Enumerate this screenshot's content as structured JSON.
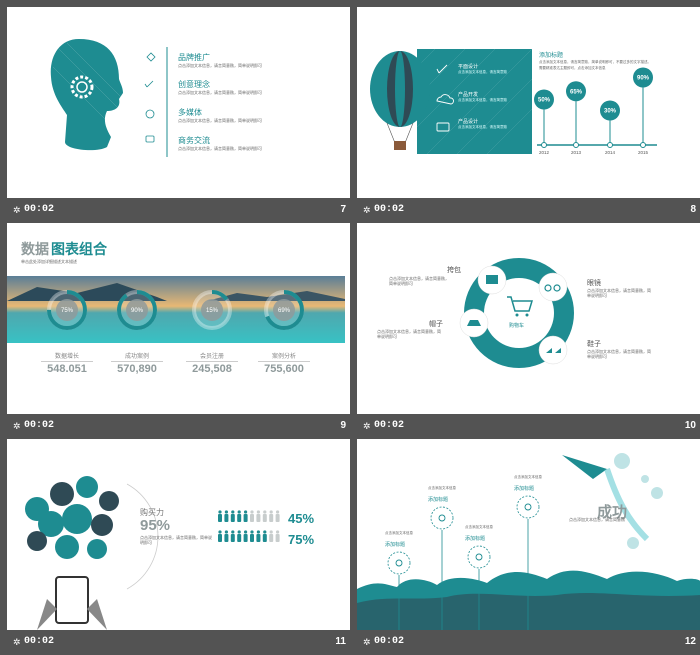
{
  "colors": {
    "teal": "#1e8c91",
    "light_teal": "#49c1c9",
    "gray": "#8f9a9b",
    "bg": "#535353"
  },
  "slides": [
    {
      "time": "00:02",
      "number": "7",
      "items": [
        {
          "icon": "bulb-icon",
          "title": "品牌推广",
          "desc": "点击添加文本信息，请言简意赅，简单说明即可"
        },
        {
          "icon": "rocket-icon",
          "title": "创意理念",
          "desc": "点击添加文本信息，请言简意赅，简单说明即可"
        },
        {
          "icon": "globe-icon",
          "title": "多媒体",
          "desc": "点击添加文本信息，请言简意赅，简单说明即可"
        },
        {
          "icon": "chat-icon",
          "title": "商务交流",
          "desc": "点击添加文本信息，请言简意赅，简单说明即可"
        }
      ]
    },
    {
      "time": "00:02",
      "number": "8",
      "features": [
        {
          "icon": "rocket-icon",
          "title": "平面设计",
          "desc": "点击添加文本信息，请言简意赅"
        },
        {
          "icon": "cloud-upload-icon",
          "title": "产品开发",
          "desc": "点击添加文本信息，请言简意赅"
        },
        {
          "icon": "monitor-icon",
          "title": "产品设计",
          "desc": "点击添加文本信息，请言简意赅"
        }
      ],
      "heading": "添加标题",
      "body": "点击添加文本信息，请言简意赅，简单说明即可，不要过多的文字描述。需要精准表达主题即可，点击添加文本信息"
    },
    {
      "time": "00:02",
      "number": "9",
      "title_a": "数据",
      "title_b": "图表组合",
      "subtitle": "单击此处添加详细描述文本描述",
      "stats": [
        {
          "pct": "75%",
          "label": "数据增长",
          "value": "548.051"
        },
        {
          "pct": "90%",
          "label": "成功案例",
          "value": "570,890"
        },
        {
          "pct": "15%",
          "label": "会员注册",
          "value": "245,508"
        },
        {
          "pct": "69%",
          "label": "案例分析",
          "value": "755,600"
        }
      ]
    },
    {
      "time": "00:02",
      "number": "10",
      "center": "购物车",
      "items": [
        {
          "icon": "bag-icon",
          "label": "挎包",
          "desc": "点击添加文本信息，请言简意赅，简单说明即可"
        },
        {
          "icon": "glasses-icon",
          "label": "眼镜",
          "desc": "点击添加文本信息，请言简意赅，简单说明即可"
        },
        {
          "icon": "hat-icon",
          "label": "帽子",
          "desc": "点击添加文本信息，请言简意赅，简单说明即可"
        },
        {
          "icon": "shoes-icon",
          "label": "鞋子",
          "desc": "点击添加文本信息，请言简意赅，简单说明即可"
        }
      ]
    },
    {
      "time": "00:02",
      "number": "11",
      "title": "购买力",
      "big": "95%",
      "desc": "点击添加文本信息，请言简意赅，简单说明即可",
      "rows": [
        {
          "value": "45%"
        },
        {
          "value": "75%"
        }
      ]
    },
    {
      "time": "00:02",
      "number": "12",
      "title": "成功",
      "desc": "点击添加文本信息，请言简意赅",
      "pins": [
        {
          "label": "添加标题",
          "icon": "heart-icon",
          "note": "点击添加文本信息"
        },
        {
          "label": "添加标题",
          "icon": "star-icon",
          "note": "点击添加文本信息"
        },
        {
          "label": "添加标题",
          "icon": "plane-icon",
          "note": "点击添加文本信息"
        },
        {
          "label": "添加标题",
          "icon": "thumbs-up-icon",
          "note": "点击添加文本信息"
        }
      ]
    }
  ],
  "chart_data": {
    "type": "line",
    "x": [
      "2012",
      "2013",
      "2014",
      "2015"
    ],
    "series": [
      {
        "values": [
          50,
          65,
          30,
          90
        ]
      }
    ],
    "labels": [
      "50%",
      "65%",
      "30%",
      "90%"
    ]
  }
}
